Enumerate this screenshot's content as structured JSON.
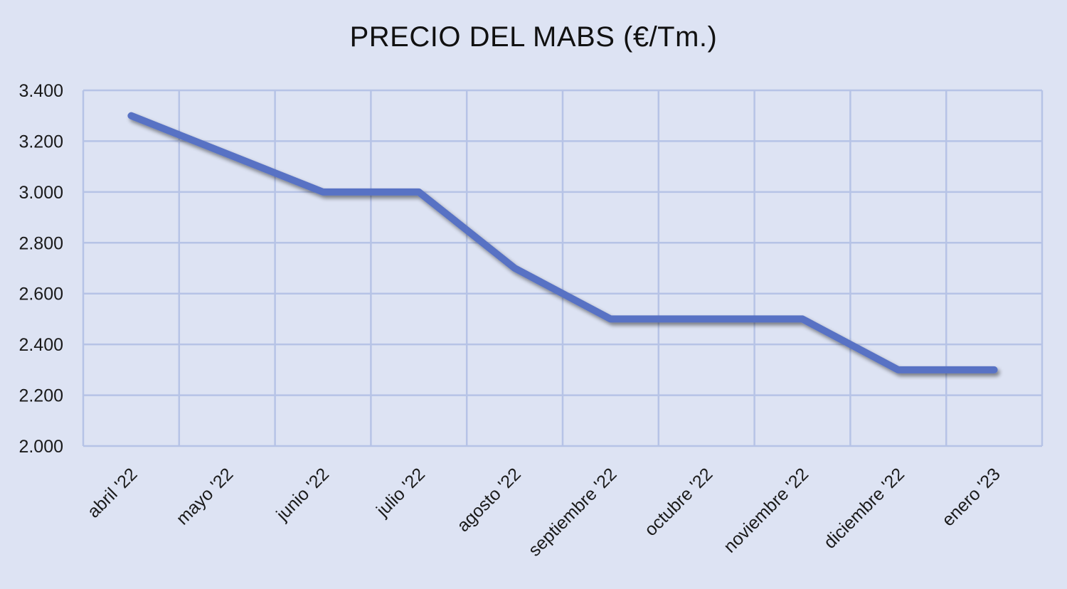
{
  "chart_data": {
    "type": "line",
    "title": "PRECIO DEL MABS (€/Tm.)",
    "xlabel": "",
    "ylabel": "",
    "categories": [
      "abril '22",
      "mayo '22",
      "junio '22",
      "julio '22",
      "agosto '22",
      "septiembre '22",
      "octubre '22",
      "noviembre '22",
      "diciembre '22",
      "enero '23"
    ],
    "series": [
      {
        "values": [
          3300,
          3150,
          3000,
          3000,
          2700,
          2500,
          2500,
          2500,
          2300,
          2300
        ]
      }
    ],
    "ylim": [
      2000,
      3400
    ],
    "yticks": [
      2000,
      2200,
      2400,
      2600,
      2800,
      3000,
      3200,
      3400
    ],
    "ytick_labels": [
      "2.000",
      "2.200",
      "2.400",
      "2.600",
      "2.800",
      "3.000",
      "3.200",
      "3.400"
    ],
    "grid": true,
    "legend": "none",
    "colors": {
      "line": "#5872c4",
      "grid": "#b6c3e6",
      "background": "#dde3f3"
    }
  }
}
